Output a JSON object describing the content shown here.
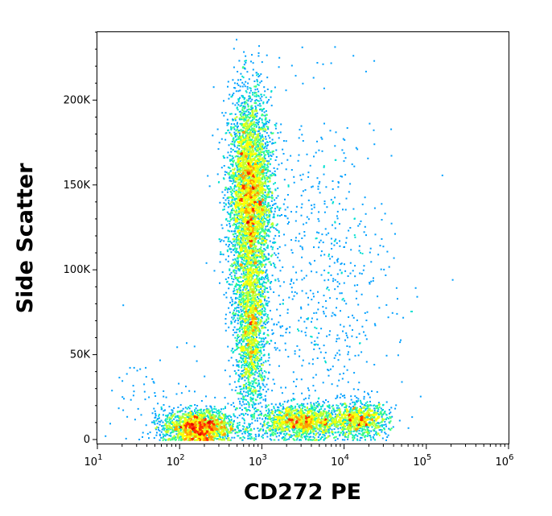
{
  "chart_data": {
    "type": "scatter",
    "title": "",
    "xlabel": "CD272 PE",
    "ylabel": "Side Scatter",
    "x_scale": "log",
    "xlim": [
      10,
      1000000
    ],
    "ylim": [
      0,
      240000
    ],
    "grid": false,
    "legend": "none",
    "x_ticks": [
      {
        "base": "10",
        "exp": "1",
        "value": 10
      },
      {
        "base": "10",
        "exp": "2",
        "value": 100
      },
      {
        "base": "10",
        "exp": "3",
        "value": 1000
      },
      {
        "base": "10",
        "exp": "4",
        "value": 10000
      },
      {
        "base": "10",
        "exp": "5",
        "value": 100000
      },
      {
        "base": "10",
        "exp": "6",
        "value": 1000000
      }
    ],
    "y_ticks": [
      {
        "label": "0",
        "value": 0
      },
      {
        "label": "50K",
        "value": 50000
      },
      {
        "label": "100K",
        "value": 100000
      },
      {
        "label": "150K",
        "value": 150000
      },
      {
        "label": "200K",
        "value": 200000
      }
    ],
    "density_colors": [
      "#0000ff",
      "#00a0ff",
      "#00e0d0",
      "#40ff80",
      "#c0ff30",
      "#ffff00",
      "#ffa000",
      "#ff3000",
      "#e00000"
    ],
    "populations": [
      {
        "x_center": 700,
        "x_spread_decades": 0.13,
        "y_center": 145000,
        "y_spread": 30000,
        "count": 4200
      },
      {
        "x_center": 720,
        "x_spread_decades": 0.1,
        "y_center": 65000,
        "y_spread": 25000,
        "count": 1800
      },
      {
        "x_center": 170,
        "x_spread_decades": 0.22,
        "y_center": 8000,
        "y_spread": 5000,
        "count": 1800
      },
      {
        "x_center": 3000,
        "x_spread_decades": 0.25,
        "y_center": 11000,
        "y_spread": 5000,
        "count": 1400
      },
      {
        "x_center": 15000,
        "x_spread_decades": 0.18,
        "y_center": 12000,
        "y_spread": 5000,
        "count": 900
      },
      {
        "x_center": 5000,
        "x_spread_decades": 0.45,
        "y_center": 90000,
        "y_spread": 55000,
        "count": 700
      },
      {
        "x_center": 60,
        "x_spread_decades": 0.3,
        "y_center": 20000,
        "y_spread": 20000,
        "count": 80
      }
    ]
  }
}
